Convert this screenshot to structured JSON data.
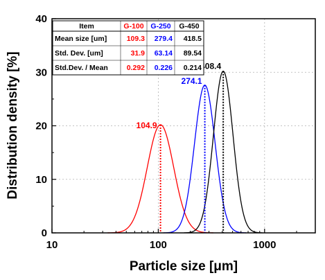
{
  "chart_data": {
    "type": "line",
    "xlabel": "Particle size [μm]",
    "ylabel": "Distribution density [%]",
    "xscale": "log",
    "xlim": [
      10,
      3000
    ],
    "ylim": [
      0,
      40
    ],
    "x_ticks": [
      "10",
      "100",
      "1000"
    ],
    "y_ticks": [
      "0",
      "10",
      "20",
      "30",
      "40"
    ],
    "grid": true,
    "legend": "none",
    "series": [
      {
        "name": "G-100",
        "color": "#ff0000",
        "mean": 109.3,
        "std": 31.9,
        "peak_x": 104.9,
        "peak_y": 20.2
      },
      {
        "name": "G-250",
        "color": "#0000ff",
        "mean": 279.4,
        "std": 63.14,
        "peak_x": 274.1,
        "peak_y": 27.6
      },
      {
        "name": "G-450",
        "color": "#000000",
        "mean": 418.5,
        "std": 89.54,
        "peak_x": 408.4,
        "peak_y": 30.2
      }
    ],
    "peak_labels": [
      "104.9",
      "274.1",
      "408.4"
    ],
    "table": {
      "header": [
        "Item",
        "G-100",
        "G-250",
        "G-450"
      ],
      "rows": [
        [
          "Mean size [um]",
          "109.3",
          "279.4",
          "418.5"
        ],
        [
          "Std. Dev. [um]",
          "31.9",
          "63.14",
          "89.54"
        ],
        [
          "Std.Dev. / Mean",
          "0.292",
          "0.226",
          "0.214"
        ]
      ]
    }
  }
}
